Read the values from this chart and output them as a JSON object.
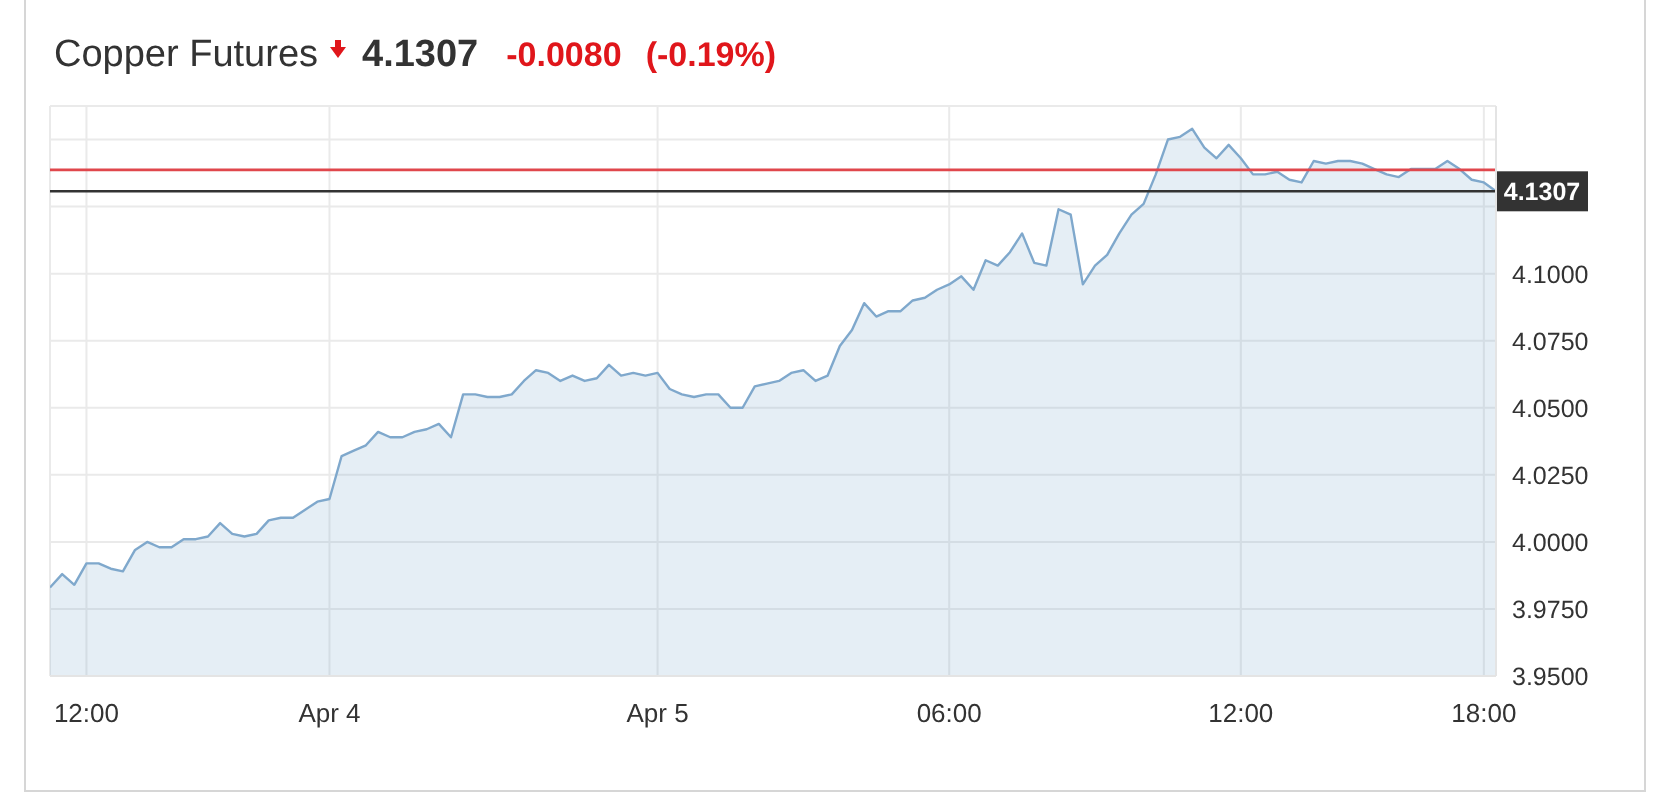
{
  "chart_data": {
    "type": "area",
    "title": "Copper Futures",
    "annotations": [
      "4.1307",
      "-0.0080",
      "(-0.19%)"
    ],
    "categories": [
      null,
      null,
      null,
      "12:00",
      null,
      null,
      null,
      null,
      null,
      null,
      null,
      null,
      null,
      null,
      null,
      null,
      null,
      null,
      null,
      null,
      null,
      null,
      null,
      "Apr 4",
      null,
      null,
      null,
      null,
      null,
      null,
      null,
      null,
      null,
      null,
      null,
      null,
      null,
      null,
      null,
      null,
      null,
      null,
      null,
      null,
      null,
      null,
      null,
      null,
      null,
      null,
      "Apr 5",
      null,
      null,
      null,
      null,
      null,
      null,
      null,
      null,
      null,
      null,
      null,
      null,
      null,
      null,
      null,
      null,
      null,
      null,
      null,
      null,
      null,
      null,
      null,
      "06:00",
      null,
      null,
      null,
      null,
      null,
      null,
      null,
      null,
      null,
      null,
      null,
      null,
      null,
      null,
      null,
      null,
      null,
      null,
      null,
      null,
      null,
      null,
      null,
      "12:00",
      null,
      null,
      null,
      null,
      null,
      null,
      null,
      null,
      null,
      null,
      null,
      null,
      null,
      null,
      null,
      null,
      null,
      null,
      null,
      "18:00",
      null
    ],
    "values": [
      3.983,
      3.988,
      3.984,
      3.992,
      3.992,
      3.99,
      3.989,
      3.997,
      4.0,
      3.998,
      3.998,
      4.001,
      4.001,
      4.002,
      4.007,
      4.003,
      4.002,
      4.003,
      4.008,
      4.009,
      4.009,
      4.012,
      4.015,
      4.016,
      4.032,
      4.034,
      4.036,
      4.041,
      4.039,
      4.039,
      4.041,
      4.042,
      4.044,
      4.039,
      4.055,
      4.055,
      4.054,
      4.054,
      4.055,
      4.06,
      4.064,
      4.063,
      4.06,
      4.062,
      4.06,
      4.061,
      4.066,
      4.062,
      4.063,
      4.062,
      4.063,
      4.057,
      4.055,
      4.054,
      4.055,
      4.055,
      4.05,
      4.05,
      4.058,
      4.059,
      4.06,
      4.063,
      4.064,
      4.06,
      4.062,
      4.073,
      4.079,
      4.089,
      4.084,
      4.086,
      4.086,
      4.09,
      4.091,
      4.094,
      4.096,
      4.099,
      4.094,
      4.105,
      4.103,
      4.108,
      4.115,
      4.104,
      4.103,
      4.124,
      4.122,
      4.096,
      4.103,
      4.107,
      4.115,
      4.122,
      4.126,
      4.137,
      4.15,
      4.151,
      4.154,
      4.147,
      4.143,
      4.148,
      4.143,
      4.137,
      4.137,
      4.138,
      4.135,
      4.134,
      4.142,
      4.141,
      4.142,
      4.142,
      4.141,
      4.139,
      4.137,
      4.136,
      4.139,
      4.139,
      4.139,
      4.142,
      4.139,
      4.135,
      4.134,
      4.1307
    ],
    "color": "#7fa8cc",
    "ylim": [
      3.95,
      4.1625
    ],
    "yticks": [
      {
        "value": 3.95,
        "label": "3.9500"
      },
      {
        "value": 3.975,
        "label": "3.9750"
      },
      {
        "value": 4.0,
        "label": "4.0000"
      },
      {
        "value": 4.025,
        "label": "4.0250"
      },
      {
        "value": 4.05,
        "label": "4.0500"
      },
      {
        "value": 4.075,
        "label": "4.0750"
      },
      {
        "value": 4.1,
        "label": "4.1000"
      },
      {
        "value": 4.125,
        "label": null
      },
      {
        "value": 4.15,
        "label": null
      }
    ],
    "ref_lines": [
      {
        "axis": "y",
        "value": 4.1387,
        "color": "#e0474c"
      },
      {
        "axis": "y",
        "value": 4.1307,
        "label": "4.1307",
        "color": "#333333"
      }
    ],
    "grid": true
  }
}
